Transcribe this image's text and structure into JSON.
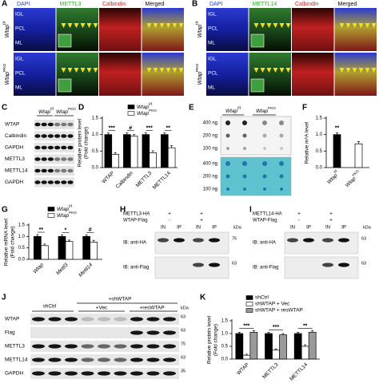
{
  "panels": {
    "A": {
      "letter": "A",
      "columns": [
        "DAPI",
        "METTL3",
        "Calbindin",
        "Merged"
      ],
      "rows": [
        {
          "name": "Wtap",
          "sup": "f/f"
        },
        {
          "name": "Wtap",
          "sup": "PKO"
        }
      ],
      "layers": [
        "IGL",
        "PCL",
        "ML"
      ]
    },
    "B": {
      "letter": "B",
      "columns": [
        "DAPI",
        "METTL14",
        "Calbindin",
        "Merged"
      ],
      "rows": [
        {
          "name": "Wtap",
          "sup": "f/f"
        },
        {
          "name": "Wtap",
          "sup": "PKO"
        }
      ],
      "layers": [
        "IGL",
        "PCL",
        "ML"
      ]
    },
    "C": {
      "letter": "C",
      "header": [
        {
          "name": "Wtap",
          "sup": "f/f"
        },
        {
          "name": "Wtap",
          "sup": "PKO"
        }
      ],
      "bands": [
        "WTAP",
        "Calbindin",
        "GAPDH",
        "METTL3",
        "METTL14",
        "GAPDH"
      ]
    },
    "E": {
      "letter": "E",
      "header": [
        {
          "name": "Wtap",
          "sup": "f/f"
        },
        {
          "name": "Wtap",
          "sup": "PKO"
        }
      ],
      "amounts": [
        "400 ng",
        "200 ng",
        "100 ng",
        "400 ng",
        "200 ng",
        "100 ng"
      ]
    },
    "H": {
      "letter": "H",
      "rows": [
        {
          "label": "METTL3-HA",
          "signs": [
            "+",
            "+"
          ]
        },
        {
          "label": "WTAP-Flag",
          "signs": [
            "-",
            "+"
          ]
        }
      ],
      "lanes": [
        "IN",
        "IP",
        "IN",
        "IP"
      ],
      "blots": [
        "IB: anti-HA",
        "IB: anti-Flag"
      ],
      "unit": "kDa",
      "markers": [
        "75",
        "63"
      ]
    },
    "I": {
      "letter": "I",
      "rows": [
        {
          "label": "METTL14-HA",
          "signs": [
            "+",
            "+"
          ]
        },
        {
          "label": "WTAP-Flag",
          "signs": [
            "-",
            "+"
          ]
        }
      ],
      "lanes": [
        "IN",
        "IP",
        "IN",
        "IP"
      ],
      "blots": [
        "IB: anti-HA",
        "IB: anti-Flag"
      ],
      "unit": "kDa",
      "markers": [
        "63",
        "63"
      ]
    },
    "J": {
      "letter": "J",
      "groups": [
        "+shWTAP",
        "shCtrl",
        "+Vec",
        "+resWTAP"
      ],
      "bands": [
        "WTAP",
        "Flag",
        "METTL3",
        "METTL14",
        "GAPDH"
      ],
      "unit": "kDa",
      "markers": [
        "63",
        "63",
        "75",
        "63",
        "35"
      ]
    }
  },
  "chart_data": [
    {
      "type": "bar",
      "panel": "D",
      "ylabel": [
        "Relative protein level",
        "(Fold change)"
      ],
      "categories": [
        "WTAP",
        "Calbindin",
        "METTL3",
        "METTL14"
      ],
      "series": [
        {
          "name": "Wtap",
          "sup": "f/f",
          "color": "#000000",
          "values": [
            1.0,
            1.0,
            1.0,
            1.0
          ],
          "errors": [
            0.05,
            0.05,
            0.05,
            0.05
          ]
        },
        {
          "name": "Wtap",
          "sup": "PKO",
          "color": "#ffffff",
          "values": [
            0.4,
            0.95,
            0.45,
            0.6
          ],
          "errors": [
            0.05,
            0.05,
            0.06,
            0.07
          ]
        }
      ],
      "significance": [
        "***",
        "#",
        "***",
        "**"
      ],
      "ylim": [
        0,
        1.5
      ],
      "yticks": [
        {
          "value": 0,
          "label": "0.0"
        },
        0.5,
        {
          "value": 1,
          "label": "1.0"
        },
        1.5
      ]
    },
    {
      "type": "bar",
      "panel": "F",
      "ylabel": [
        "Relative m⁶A level"
      ],
      "categories": [
        "Wtap",
        "Wtap"
      ],
      "category_sups": [
        "f/f",
        "PKO"
      ],
      "values": [
        1.0,
        0.72
      ],
      "errors": [
        0.05,
        0.07
      ],
      "colors": [
        "#000000",
        "#ffffff"
      ],
      "significance": [
        "**"
      ],
      "ylim": [
        0,
        1.5
      ],
      "yticks": [
        {
          "value": 0,
          "label": "0.0"
        },
        0.5,
        {
          "value": 1,
          "label": "1.0"
        },
        1.5
      ]
    },
    {
      "type": "bar",
      "panel": "G",
      "ylabel": [
        "Relative mRNA level",
        "(Fold change)"
      ],
      "categories": [
        "Wtap",
        "Mettl3",
        "Mettl14"
      ],
      "series": [
        {
          "name": "Wtap",
          "sup": "f/f",
          "color": "#000000",
          "values": [
            1.0,
            1.0,
            1.0
          ],
          "errors": [
            0.08,
            0.06,
            0.07
          ]
        },
        {
          "name": "Wtap",
          "sup": "PKO",
          "color": "#ffffff",
          "values": [
            0.6,
            0.78,
            0.75
          ],
          "errors": [
            0.07,
            0.06,
            0.08
          ]
        }
      ],
      "significance": [
        "**",
        "*",
        "#"
      ],
      "ylim": [
        0,
        1.5
      ],
      "yticks": [
        {
          "value": 0,
          "label": "0.0"
        },
        0.5,
        {
          "value": 1,
          "label": "1.0"
        },
        1.5
      ]
    },
    {
      "type": "bar",
      "panel": "K",
      "ylabel": [
        "Relative protein level",
        "(Fold change)"
      ],
      "categories": [
        "WTAP",
        "METTL3",
        "METTL14"
      ],
      "series": [
        {
          "name": "shCtrl",
          "color": "#000000",
          "values": [
            1.0,
            1.0,
            1.0
          ],
          "errors": [
            0.05,
            0.05,
            0.05
          ]
        },
        {
          "name": "shWTAP + Vec",
          "color": "#ffffff",
          "values": [
            0.15,
            0.35,
            0.5
          ],
          "errors": [
            0.04,
            0.05,
            0.06
          ]
        },
        {
          "name": "shWTAP + resWTAP",
          "color": "#9a9a9a",
          "values": [
            1.05,
            0.95,
            1.05
          ],
          "errors": [
            0.06,
            0.05,
            0.06
          ]
        }
      ],
      "significance": [
        "***",
        "***",
        "**"
      ],
      "ylim": [
        0,
        1.5
      ],
      "yticks": [
        {
          "value": 0,
          "label": "0.0"
        },
        0.5,
        {
          "value": 1,
          "label": "1.0"
        },
        1.5
      ]
    }
  ]
}
